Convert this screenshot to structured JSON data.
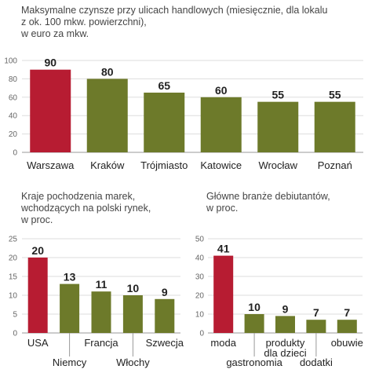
{
  "colors": {
    "highlight": "#b71c32",
    "bar": "#6d7a2a",
    "grid": "#dddddd",
    "axis": "#999999"
  },
  "chart_data": [
    {
      "id": "rents",
      "type": "bar",
      "title": "Maksymalne czynsze przy ulicach handlowych (miesięcznie, dla lokalu\nz ok. 100 mkw. powierzchni),\nw euro za mkw.",
      "categories": [
        "Warszawa",
        "Kraków",
        "Trójmiasto",
        "Katowice",
        "Wrocław",
        "Poznań"
      ],
      "values": [
        90,
        80,
        65,
        60,
        55,
        55
      ],
      "ylim": [
        0,
        100
      ],
      "yticks": [
        0,
        20,
        40,
        60,
        80,
        100
      ],
      "highlight_index": 0,
      "grid": true
    },
    {
      "id": "origins",
      "type": "bar",
      "title": "Kraje pochodzenia marek,\nwchodzących na polski rynek,\nw proc.",
      "categories": [
        "USA",
        "Niemcy",
        "Francja",
        "Włochy",
        "Szwecja"
      ],
      "values": [
        20,
        13,
        11,
        10,
        9
      ],
      "ylim": [
        0,
        25
      ],
      "yticks": [
        0,
        5,
        10,
        15,
        20,
        25
      ],
      "highlight_index": 0,
      "grid": true
    },
    {
      "id": "industries",
      "type": "bar",
      "title": "Główne branże debiutantów,\nw proc.",
      "categories": [
        "moda",
        "gastronomia",
        "produkty\ndla dzieci",
        "dodatki",
        "obuwie"
      ],
      "values": [
        41,
        10,
        9,
        7,
        7
      ],
      "ylim": [
        0,
        50
      ],
      "yticks": [
        0,
        10,
        20,
        30,
        40,
        50
      ],
      "highlight_index": 0,
      "grid": true
    }
  ]
}
